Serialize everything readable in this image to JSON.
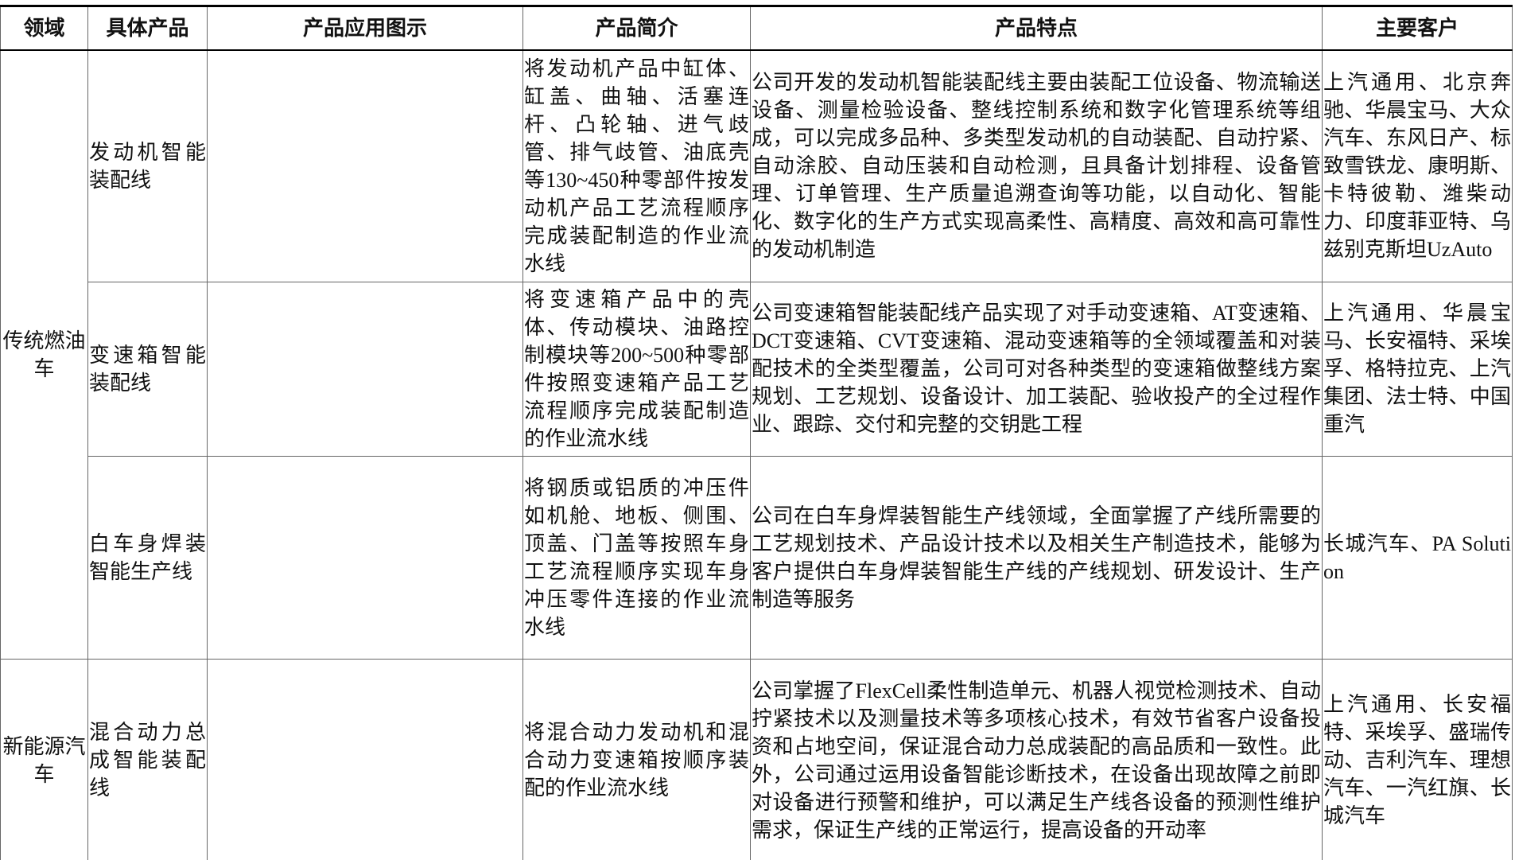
{
  "table": {
    "header": [
      "领域",
      "具体产品",
      "产品应用图示",
      "产品简介",
      "产品特点",
      "主要客户"
    ],
    "groups": [
      {
        "domain": "传统燃油车",
        "rows": [
          {
            "product": "发动机智能装配线",
            "intro": "将发动机产品中缸体、缸盖、曲轴、活塞连杆、凸轮轴、进气歧管、排气歧管、油底壳等130~450种零部件按发动机产品工艺流程顺序完成装配制造的作业流水线",
            "features": "公司开发的发动机智能装配线主要由装配工位设备、物流输送设备、测量检验设备、整线控制系统和数字化管理系统等组成，可以完成多品种、多类型发动机的自动装配、自动拧紧、自动涂胶、自动压装和自动检测，且具备计划排程、设备管理、订单管理、生产质量追溯查询等功能，以自动化、智能化、数字化的生产方式实现高柔性、高精度、高效和高可靠性的发动机制造",
            "customers": "上汽通用、北京奔驰、华晨宝马、大众汽车、东风日产、标致雪铁龙、康明斯、卡特彼勒、潍柴动力、印度菲亚特、乌兹别克斯坦UzAuto"
          },
          {
            "product": "变速箱智能装配线",
            "intro": "将变速箱产品中的壳体、传动模块、油路控制模块等200~500种零部件按照变速箱产品工艺流程顺序完成装配制造的作业流水线",
            "features": "公司变速箱智能装配线产品实现了对手动变速箱、AT变速箱、DCT变速箱、CVT变速箱、混动变速箱等的全领域覆盖和对装配技术的全类型覆盖，公司可对各种类型的变速箱做整线方案规划、工艺规划、设备设计、加工装配、验收投产的全过程作业、跟踪、交付和完整的交钥匙工程",
            "customers": "上汽通用、华晨宝马、长安福特、采埃孚、格特拉克、上汽集团、法士特、中国重汽"
          },
          {
            "product": "白车身焊装智能生产线",
            "intro": "将钢质或铝质的冲压件如机舱、地板、侧围、顶盖、门盖等按照车身工艺流程顺序实现车身冲压零件连接的作业流水线",
            "features": "公司在白车身焊装智能生产线领域，全面掌握了产线所需要的工艺规划技术、产品设计技术以及相关生产制造技术，能够为客户提供白车身焊装智能生产线的产线规划、研发设计、生产制造等服务",
            "customers": "长城汽车、PA Solution"
          }
        ]
      },
      {
        "domain": "新能源汽车",
        "rows": [
          {
            "product": "混合动力总成智能装配线",
            "intro": "将混合动力发动机和混合动力变速箱按顺序装配的作业流水线",
            "features": "公司掌握了FlexCell柔性制造单元、机器人视觉检测技术、自动拧紧技术以及测量技术等多项核心技术，有效节省客户设备投资和占地空间，保证混合动力总成装配的高品质和一致性。此外，公司通过运用设备智能诊断技术，在设备出现故障之前即对设备进行预警和维护，可以满足生产线各设备的预测性维护需求，保证生产线的正常运行，提高设备的开动率",
            "customers": "上汽通用、长安福特、采埃孚、盛瑞传动、吉利汽车、理想汽车、一汽红旗、长城汽车"
          }
        ]
      }
    ]
  }
}
